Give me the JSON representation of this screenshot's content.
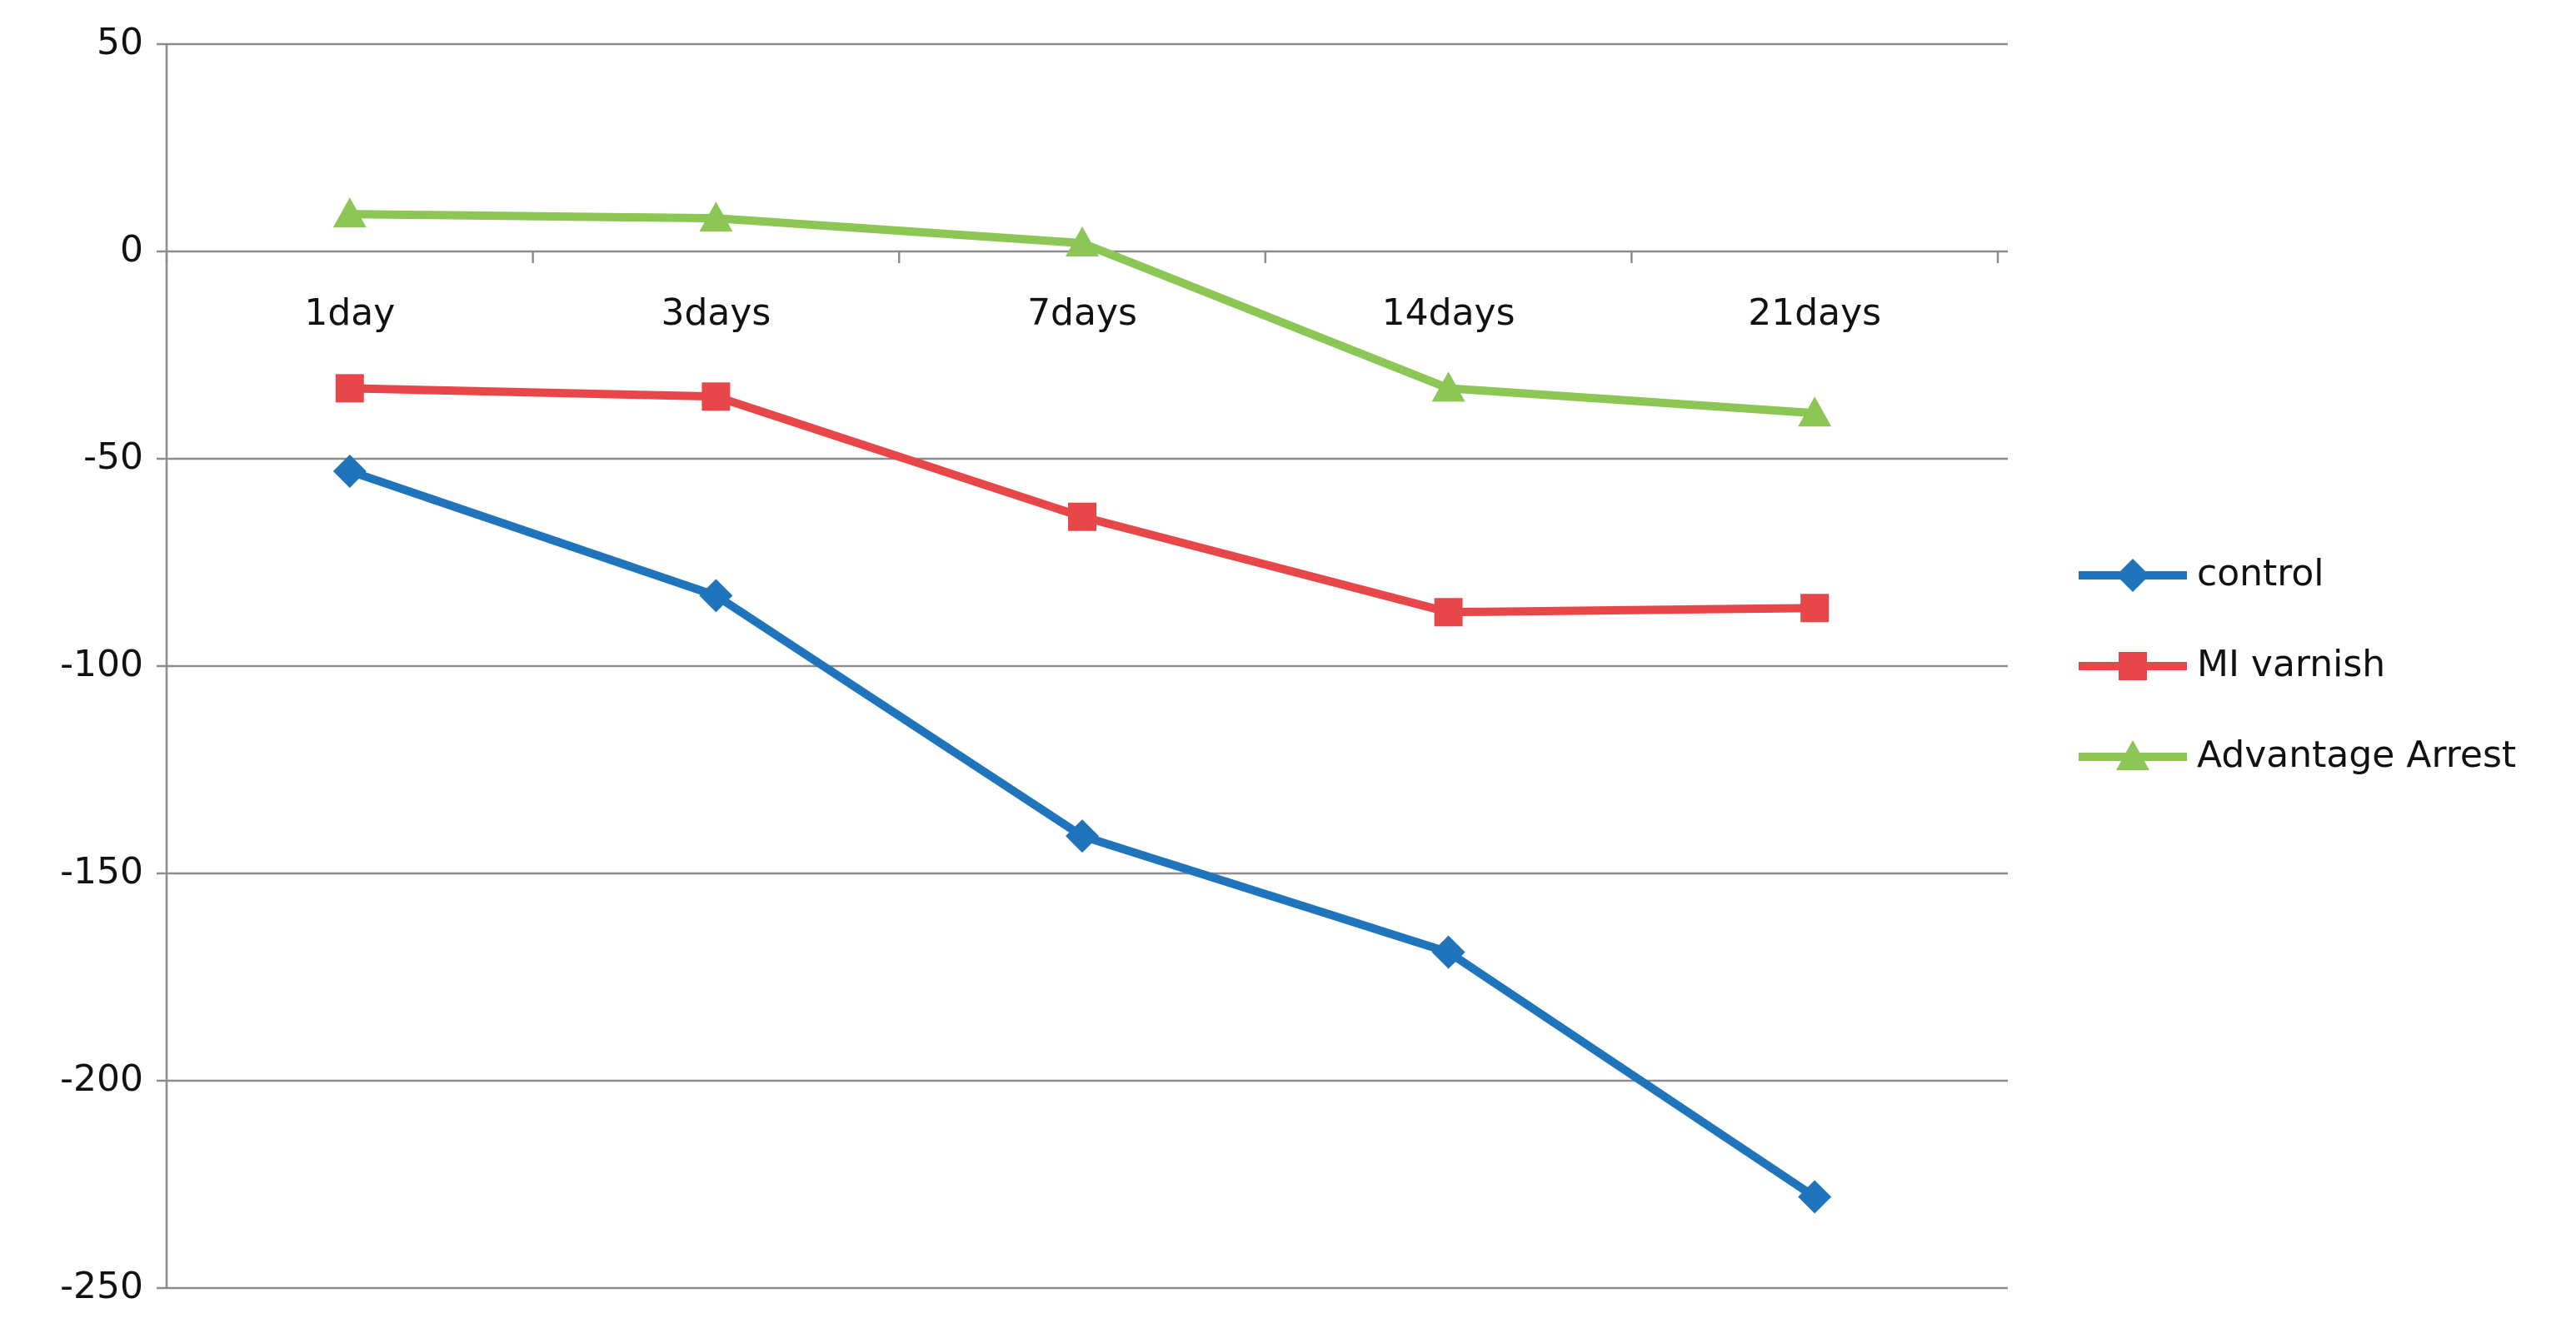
{
  "chart_data": {
    "type": "line",
    "categories": [
      "1day",
      "3days",
      "7days",
      "14days",
      "21days"
    ],
    "series": [
      {
        "name": "control",
        "color": "#1f74bb",
        "marker": "diamond",
        "values": [
          -53,
          -83,
          -141,
          -169,
          -228
        ]
      },
      {
        "name": "MI varnish",
        "color": "#e8474a",
        "marker": "square",
        "values": [
          -33,
          -35,
          -64,
          -87,
          -86
        ]
      },
      {
        "name": "Advantage Arrest",
        "color": "#8cc654",
        "marker": "triangle",
        "values": [
          9,
          8,
          2,
          -33,
          -39
        ]
      }
    ],
    "ylim": [
      -250,
      50
    ],
    "yticks": [
      -250,
      -200,
      -150,
      -100,
      -50,
      0,
      50
    ],
    "grid": true,
    "legend": "right"
  }
}
